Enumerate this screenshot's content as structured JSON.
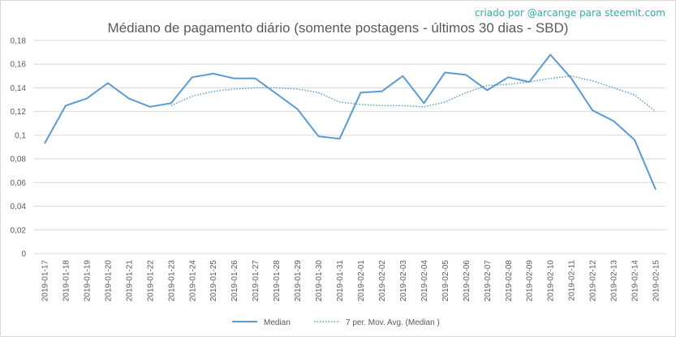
{
  "credit": "criado por @arcange para steemit.com",
  "chart_data": {
    "type": "line",
    "title": "Médiano de pagamento diário (somente postagens - últimos 30 dias - SBD)",
    "xlabel": "",
    "ylabel": "",
    "ylim": [
      0,
      0.18
    ],
    "yticks": [
      "0",
      "0,02",
      "0,04",
      "0,06",
      "0,08",
      "0,1",
      "0,12",
      "0,14",
      "0,16",
      "0,18"
    ],
    "grid": true,
    "legend_position": "bottom",
    "categories": [
      "2019-01-17",
      "2019-01-18",
      "2019-01-19",
      "2019-01-20",
      "2019-01-21",
      "2019-01-22",
      "2019-01-23",
      "2019-01-24",
      "2019-01-25",
      "2019-01-26",
      "2019-01-27",
      "2019-01-28",
      "2019-01-29",
      "2019-01-30",
      "2019-01-31",
      "2019-02-01",
      "2019-02-02",
      "2019-02-03",
      "2019-02-04",
      "2019-02-05",
      "2019-02-06",
      "2019-02-07",
      "2019-02-08",
      "2019-02-09",
      "2019-02-10",
      "2019-02-11",
      "2019-02-12",
      "2019-02-13",
      "2019-02-14",
      "2019-02-15"
    ],
    "series": [
      {
        "name": "Median",
        "style": "solid",
        "color": "#5b9bd5",
        "values": [
          0.093,
          0.125,
          0.131,
          0.144,
          0.131,
          0.124,
          0.127,
          0.149,
          0.152,
          0.148,
          0.148,
          0.135,
          0.122,
          0.099,
          0.097,
          0.136,
          0.137,
          0.15,
          0.127,
          0.153,
          0.151,
          0.138,
          0.149,
          0.145,
          0.168,
          0.148,
          0.121,
          0.112,
          0.096,
          0.054
        ]
      },
      {
        "name": "7 per. Mov. Avg. (Median )",
        "style": "dotted",
        "color": "#5b9bd5",
        "values": [
          null,
          null,
          null,
          null,
          null,
          null,
          0.125,
          0.133,
          0.137,
          0.139,
          0.14,
          0.14,
          0.139,
          0.136,
          0.128,
          0.126,
          0.125,
          0.125,
          0.124,
          0.128,
          0.136,
          0.142,
          0.143,
          0.145,
          0.148,
          0.15,
          0.146,
          0.14,
          0.134,
          0.12
        ]
      }
    ]
  }
}
